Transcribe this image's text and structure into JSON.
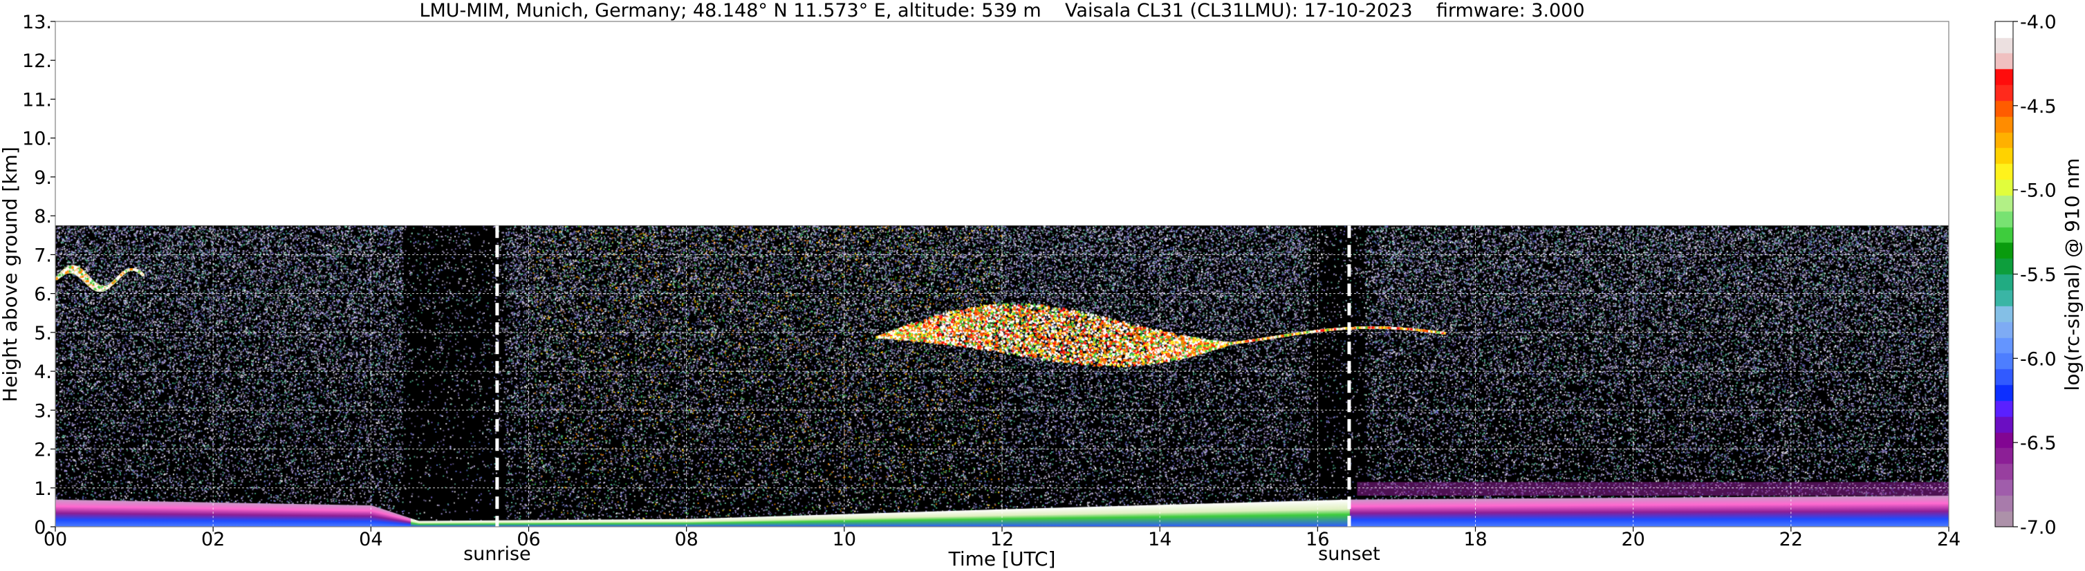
{
  "chart_data": {
    "type": "heatmap",
    "title": "LMU-MIM, Munich, Germany; 48.148° N 11.573° E, altitude: 539 m    Vaisala CL31 (CL31LMU): 17-10-2023    firmware: 3.000",
    "xlabel": "Time [UTC]",
    "ylabel": "Height above ground [km]",
    "xlim": [
      0,
      24
    ],
    "ylim": [
      0,
      13
    ],
    "x_ticks": [
      "00",
      "02",
      "04",
      "06",
      "08",
      "10",
      "12",
      "14",
      "16",
      "18",
      "20",
      "22",
      "24"
    ],
    "y_ticks": [
      "0.",
      "1.",
      "2.",
      "3.",
      "4.",
      "5.",
      "6.",
      "7.",
      "8.",
      "9.",
      "10.",
      "11.",
      "12.",
      "13."
    ],
    "grid": true,
    "data_top_km": 7.75,
    "annotations": [
      {
        "label": "sunrise",
        "time_h": 5.6
      },
      {
        "label": "sunset",
        "time_h": 16.4
      }
    ],
    "colorbar": {
      "label": "log(rc-signal) @ 910 nm",
      "range": [
        -7.0,
        -4.0
      ],
      "ticks": [
        "-4.0",
        "-4.5",
        "-5.0",
        "-5.5",
        "-6.0",
        "-6.5",
        "-7.0"
      ],
      "colors": [
        "#ad91a9",
        "#a87bab",
        "#a05dab",
        "#983f9f",
        "#8c1f96",
        "#820592",
        "#6b0ec2",
        "#5a20ff",
        "#0d2fff",
        "#315aff",
        "#4d7eff",
        "#6495ff",
        "#7eabf4",
        "#84bfe6",
        "#3ab5a5",
        "#21ab82",
        "#0d9e3c",
        "#099b0d",
        "#3ecc3d",
        "#78e272",
        "#b2f086",
        "#e1fd3c",
        "#fff21c",
        "#ffd200",
        "#ffb000",
        "#ff8c00",
        "#ff5c00",
        "#ff2a1c",
        "#ff0c0c",
        "#f0c0c0",
        "#ece0e0",
        "#ffffff"
      ]
    },
    "cloud_layers": [
      {
        "name": "early-cloud",
        "from_h": 0.0,
        "to_h": 1.1,
        "base_km": 6.3,
        "top_km": 6.5
      },
      {
        "name": "mid-cloud",
        "from_h": 10.4,
        "to_h": 17.6,
        "base_km": 4.2,
        "top_km": 5.6
      }
    ],
    "boundary_layer": [
      {
        "time_h": 0.0,
        "top_km": 0.7
      },
      {
        "time_h": 4.0,
        "top_km": 0.55
      },
      {
        "time_h": 4.6,
        "top_km": 0.15
      },
      {
        "time_h": 8.0,
        "top_km": 0.2
      },
      {
        "time_h": 12.0,
        "top_km": 0.45
      },
      {
        "time_h": 16.4,
        "top_km": 0.7
      },
      {
        "time_h": 24.0,
        "top_km": 0.8
      }
    ]
  }
}
